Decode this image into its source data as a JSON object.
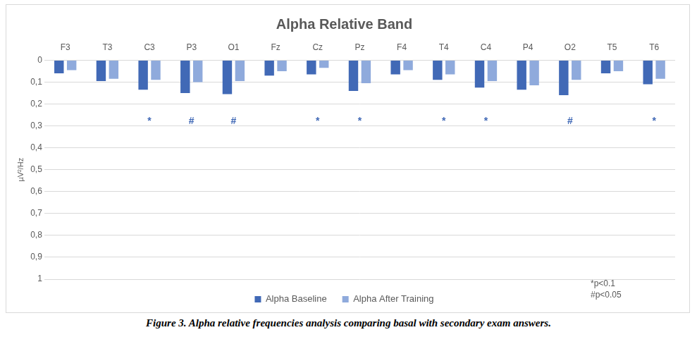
{
  "chart_data": {
    "type": "bar",
    "title": "Alpha Relative Band",
    "categories": [
      "F3",
      "T3",
      "C3",
      "P3",
      "O1",
      "Fz",
      "Cz",
      "Pz",
      "F4",
      "T4",
      "C4",
      "P4",
      "O2",
      "T5",
      "T6"
    ],
    "series": [
      {
        "name": "Alpha Baseline",
        "color": "#4169b6",
        "values": [
          0.06,
          0.095,
          0.135,
          0.15,
          0.155,
          0.07,
          0.065,
          0.14,
          0.065,
          0.09,
          0.125,
          0.135,
          0.16,
          0.06,
          0.11
        ]
      },
      {
        "name": "Alpha After Training",
        "color": "#8faadc",
        "values": [
          0.045,
          0.085,
          0.09,
          0.1,
          0.095,
          0.05,
          0.035,
          0.105,
          0.045,
          0.065,
          0.095,
          0.115,
          0.09,
          0.05,
          0.085
        ]
      }
    ],
    "y_label": "µV²/Hz",
    "ylim": [
      0,
      1
    ],
    "yticks": [
      0,
      {
        "value": 0.1,
        "label": "0,1"
      },
      {
        "value": 0.2,
        "label": "0,2"
      },
      {
        "value": 0.3,
        "label": "0,3"
      },
      {
        "value": 0.4,
        "label": "0,4"
      },
      {
        "value": 0.5,
        "label": "0,5"
      },
      {
        "value": 0.6,
        "label": "0,6"
      },
      {
        "value": 0.7,
        "label": "0,7"
      },
      {
        "value": 0.8,
        "label": "0,8"
      },
      {
        "value": 0.9,
        "label": "0,9"
      },
      1
    ],
    "grid": true,
    "legend": "bottom",
    "markers": [
      null,
      null,
      "*",
      "#",
      "#",
      null,
      "*",
      "*",
      null,
      "*",
      "*",
      null,
      "#",
      null,
      "*"
    ],
    "notes": [
      "*p<0.1",
      "#p<0.05"
    ],
    "caption": "Figure 3. Alpha relative frequencies analysis comparing basal with secondary exam answers."
  }
}
